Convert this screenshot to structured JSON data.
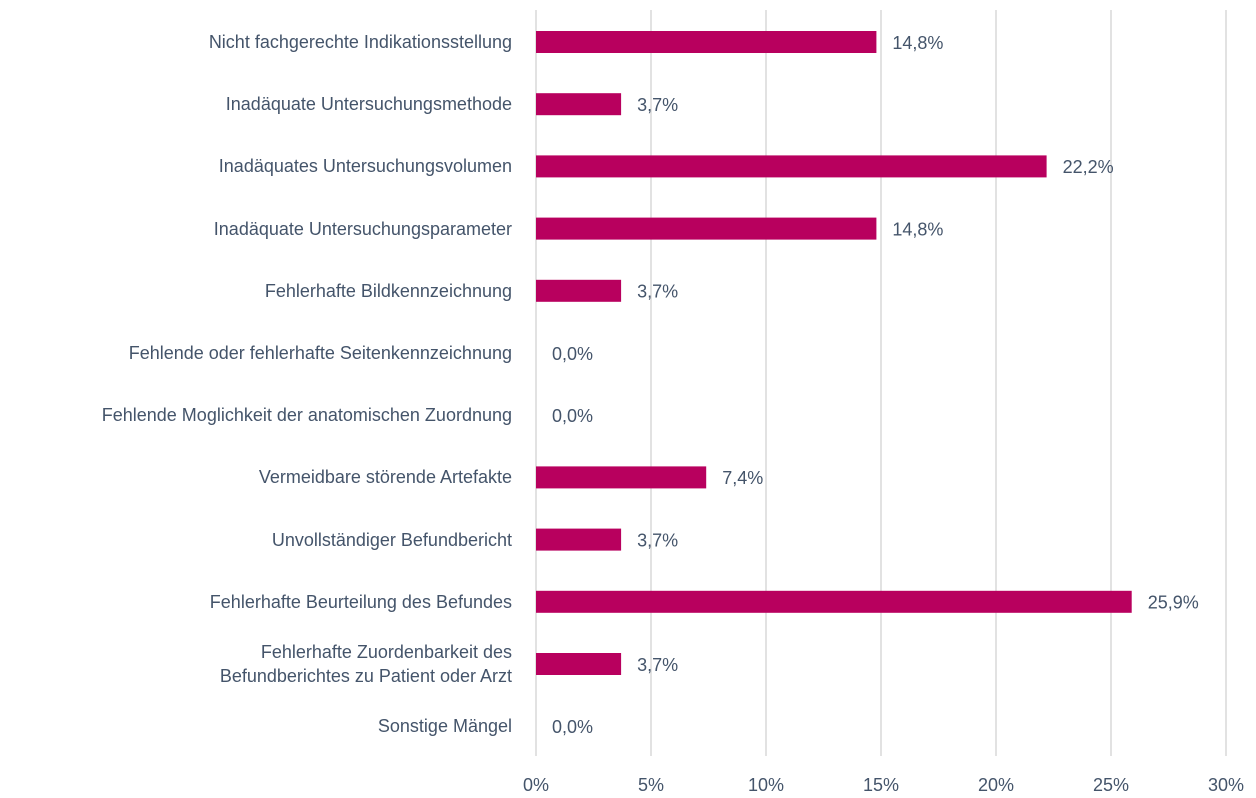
{
  "chart_data": {
    "type": "bar",
    "orientation": "horizontal",
    "categories": [
      "Nicht fachgerechte Indikationsstellung",
      "Inadäquate Untersuchungsmethode",
      "Inadäquates Untersuchungsvolumen",
      "Inadäquate Untersuchungsparameter",
      "Fehlerhafte Bildkennzeichnung",
      "Fehlende oder fehlerhafte Seitenkennzeichnung",
      "Fehlende Moglichkeit der anatomischen Zuordnung",
      "Vermeidbare störende Artefakte",
      "Unvollständiger Befundbericht",
      "Fehlerhafte Beurteilung des Befundes",
      "Fehlerhafte Zuordenbarkeit des Befundberichtes zu Patient oder Arzt",
      "Sonstige Mängel"
    ],
    "values": [
      14.8,
      3.7,
      22.2,
      14.8,
      3.7,
      0,
      0,
      7.4,
      3.7,
      25.9,
      3.7,
      0
    ],
    "value_labels": [
      "14,8%",
      "3,7%",
      "22,2%",
      "14,8%",
      "3,7%",
      "0,0%",
      "0,0%",
      "7,4%",
      "3,7%",
      "25,9%",
      "3,7%",
      "0,0%"
    ],
    "color": "#b8005e",
    "xlim": [
      0,
      30
    ],
    "xticks": [
      {
        "value": 0,
        "label": "0%"
      },
      {
        "value": 5,
        "label": "5%"
      },
      {
        "value": 10,
        "label": "10%"
      },
      {
        "value": 15,
        "label": "15%"
      },
      {
        "value": 20,
        "label": "20%"
      },
      {
        "value": 25,
        "label": "25%"
      },
      {
        "value": 30,
        "label": "30%"
      }
    ],
    "grid": true
  }
}
